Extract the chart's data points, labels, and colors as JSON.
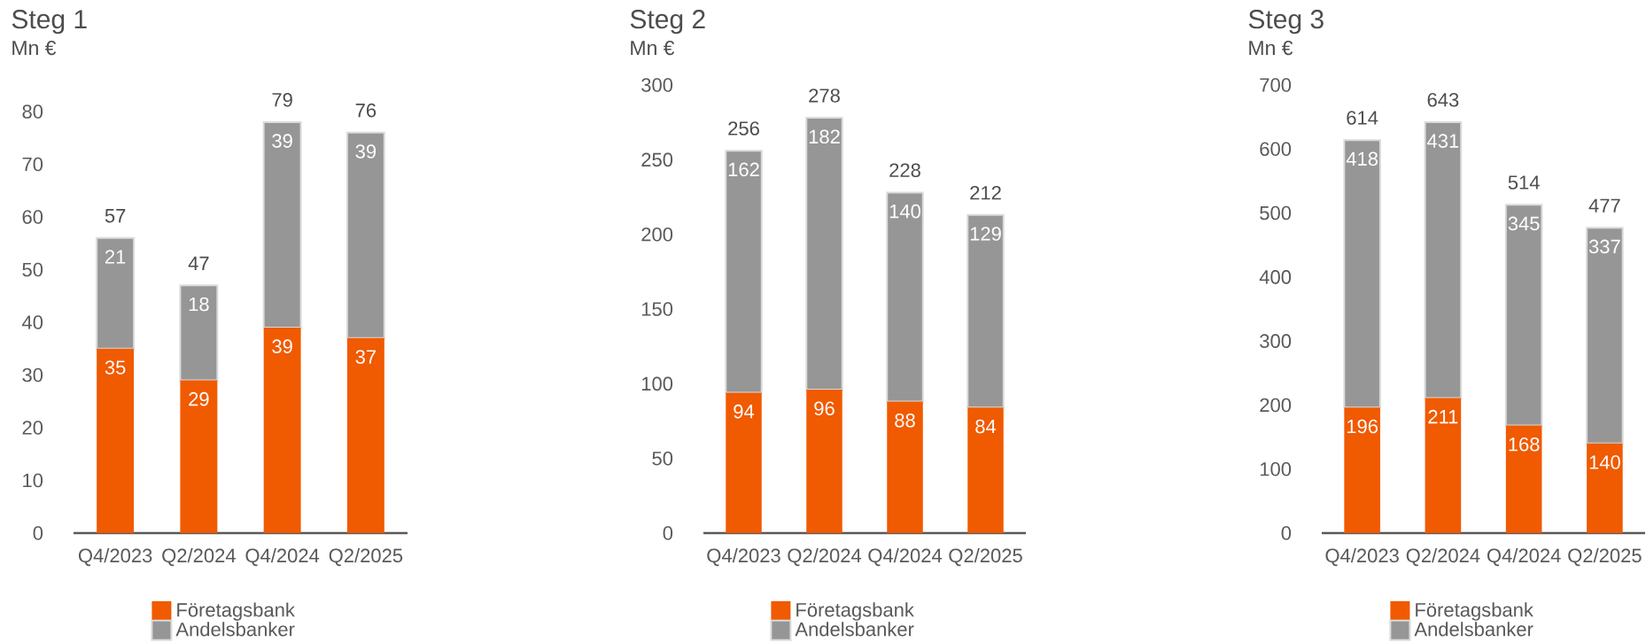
{
  "chart_data": [
    {
      "type": "bar",
      "title": "Steg 1",
      "ylabel": "Mn €",
      "categories": [
        "Q4/2023",
        "Q2/2024",
        "Q4/2024",
        "Q2/2025"
      ],
      "series": [
        {
          "name": "Företagsbank",
          "color": "#f05a00",
          "values": [
            35,
            29,
            39,
            37
          ]
        },
        {
          "name": "Andelsbanker",
          "color": "#969696",
          "values": [
            21,
            18,
            39,
            39
          ]
        }
      ],
      "stacked": true,
      "ylim": [
        0,
        80
      ],
      "yticks": [
        0,
        10,
        20,
        30,
        40,
        50,
        60,
        70,
        80
      ],
      "data_labels": true,
      "totals": [
        "57",
        "47",
        "79",
        "76"
      ],
      "legend": "bottom"
    },
    {
      "type": "bar",
      "title": "Steg 2",
      "ylabel": "Mn €",
      "categories": [
        "Q4/2023",
        "Q2/2024",
        "Q4/2024",
        "Q2/2025"
      ],
      "series": [
        {
          "name": "Företagsbank",
          "color": "#f05a00",
          "values": [
            94,
            96,
            88,
            84
          ]
        },
        {
          "name": "Andelsbanker",
          "color": "#969696",
          "values": [
            162,
            182,
            140,
            129
          ]
        }
      ],
      "stacked": true,
      "ylim": [
        0,
        300
      ],
      "yticks": [
        0,
        50,
        100,
        150,
        200,
        250,
        300
      ],
      "data_labels": true,
      "totals": [
        "256",
        "278",
        "228",
        "212"
      ],
      "legend": "bottom"
    },
    {
      "type": "bar",
      "title": "Steg 3",
      "ylabel": "Mn €",
      "categories": [
        "Q4/2023",
        "Q2/2024",
        "Q4/2024",
        "Q2/2025"
      ],
      "series": [
        {
          "name": "Företagsbank",
          "color": "#f05a00",
          "values": [
            196,
            211,
            168,
            140
          ]
        },
        {
          "name": "Andelsbanker",
          "color": "#969696",
          "values": [
            418,
            431,
            345,
            337
          ]
        }
      ],
      "stacked": true,
      "ylim": [
        0,
        700
      ],
      "yticks": [
        0,
        100,
        200,
        300,
        400,
        500,
        600,
        700
      ],
      "data_labels": true,
      "totals": [
        "614",
        "643",
        "514",
        "477"
      ],
      "legend": "bottom"
    }
  ]
}
